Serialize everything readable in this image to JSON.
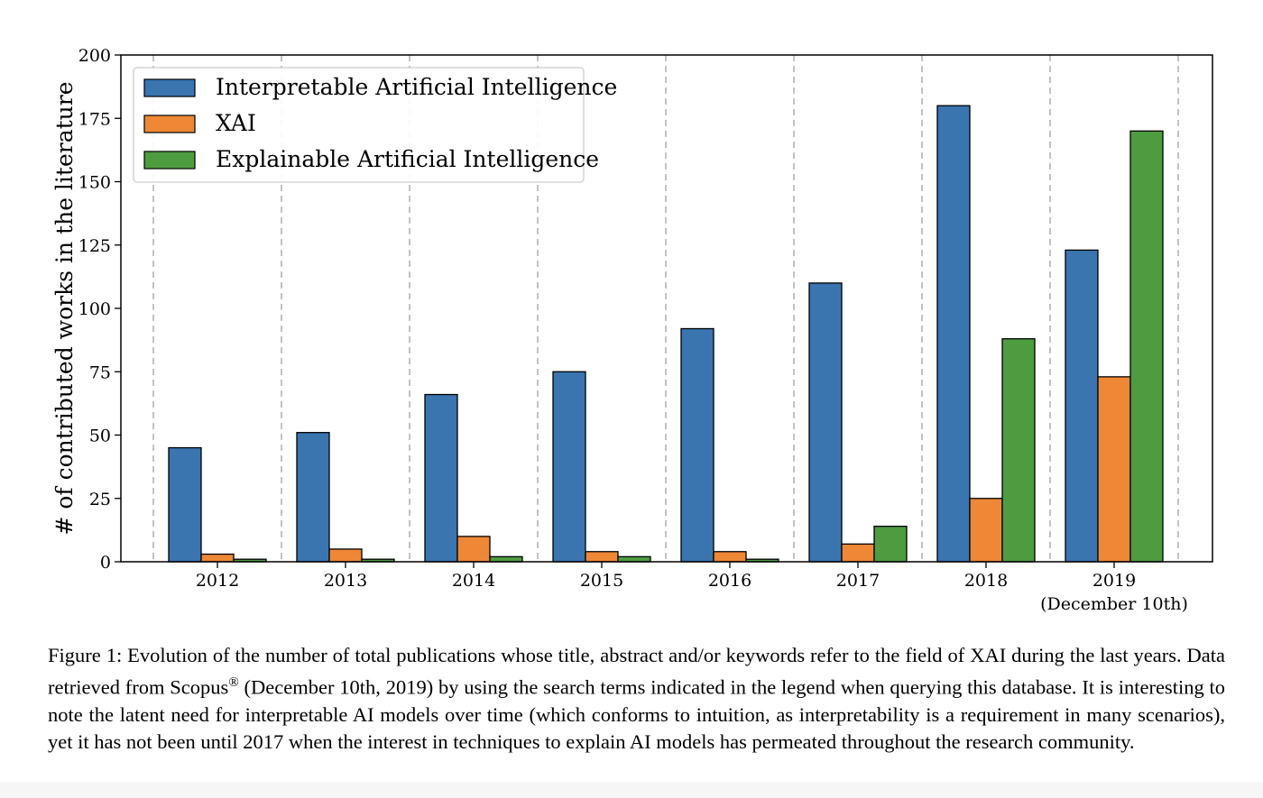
{
  "chart_data": {
    "type": "bar",
    "categories": [
      "2012",
      "2013",
      "2014",
      "2015",
      "2016",
      "2017",
      "2018",
      "2019"
    ],
    "category_sublabels": [
      "",
      "",
      "",
      "",
      "",
      "",
      "",
      "(December 10th)"
    ],
    "series": [
      {
        "name": "Interpretable Artificial Intelligence",
        "color": "#3a75b0",
        "values": [
          45,
          51,
          66,
          75,
          92,
          110,
          180,
          123
        ]
      },
      {
        "name": "XAI",
        "color": "#ee8836",
        "values": [
          3,
          5,
          10,
          4,
          4,
          7,
          25,
          73
        ]
      },
      {
        "name": "Explainable Artificial Intelligence",
        "color": "#4e9c40",
        "values": [
          1,
          1,
          2,
          2,
          1,
          14,
          88,
          170
        ]
      }
    ],
    "yticks": [
      0,
      25,
      50,
      75,
      100,
      125,
      150,
      175,
      200
    ],
    "ylim": [
      0,
      200
    ],
    "xlabel": "",
    "ylabel": "# of contributed works in the literature",
    "legend_position": "top-left",
    "grid": "vertical dashed separators between year groups"
  },
  "caption": {
    "lead": "Figure 1: Evolution of the number of total publications whose title, abstract and/or keywords refer to the field of XAI during the last years. Data retrieved from Scopus",
    "mark": "®",
    "rest": " (December 10th, 2019) by using the search terms indicated in the legend when querying this database. It is interesting to note the latent need for interpretable AI models over time (which conforms to intuition, as interpretability is a requirement in many scenarios), yet it has not been until 2017 when the interest in techniques to explain AI models has permeated throughout the research community."
  }
}
